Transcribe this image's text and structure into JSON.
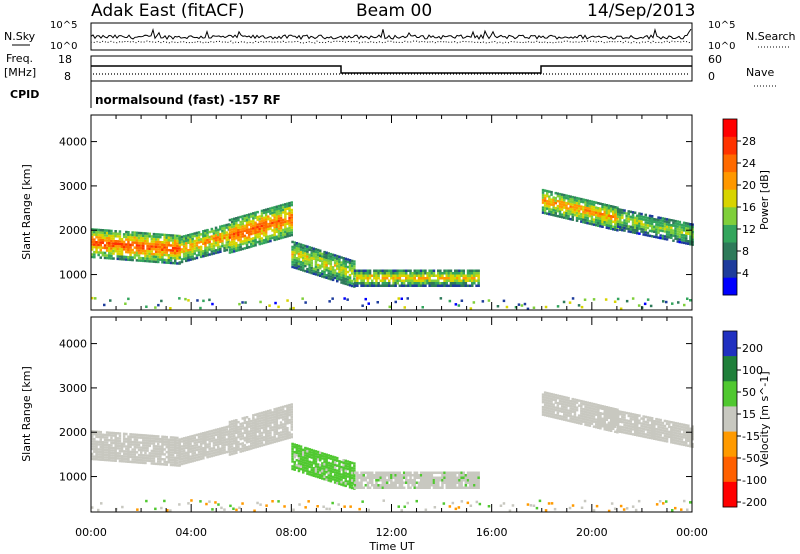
{
  "header": {
    "radar": "Adak East (fitACF)",
    "beam": "Beam 00",
    "date": "14/Sep/2013"
  },
  "params": {
    "nsky_label": "N.Sky",
    "nsky_ticks": [
      "10^5",
      "10^0"
    ],
    "nsearch_label": "N.Search",
    "nsearch_ticks": [
      "10^5",
      "10^0"
    ],
    "freq_label": "Freq.",
    "freq_unit": "[MHz]",
    "freq_ticks": [
      "18",
      "8"
    ],
    "nave_label": "Nave",
    "nave_ticks": [
      "60",
      "0"
    ],
    "cpid_label": "CPID",
    "cpid_text": "normalsound (fast) -157 RF"
  },
  "colors": {
    "power": [
      "#0000ff",
      "#1e3c9c",
      "#2e7a5a",
      "#33a55c",
      "#7fcf3a",
      "#d8d400",
      "#ff9800",
      "#ff6a00",
      "#ff3300",
      "#ff0000"
    ],
    "velocity": [
      "#2030c0",
      "#1f7f3a",
      "#50c830",
      "#c8c8c0",
      "#ff9a00",
      "#ff6000",
      "#ff0000"
    ]
  },
  "chart_data": [
    {
      "type": "heatmap",
      "title": "Power",
      "xlabel": "Time UT",
      "ylabel": "Slant Range [km]",
      "xlim": [
        "00:00",
        "24:00"
      ],
      "x_ticks": [
        "00:00",
        "04:00",
        "08:00",
        "12:00",
        "16:00",
        "20:00",
        "00:00"
      ],
      "ylim": [
        200,
        4600
      ],
      "y_ticks": [
        "1000",
        "2000",
        "3000",
        "4000"
      ],
      "colorbar_label": "Power [dB]",
      "colorbar_ticks": [
        "4",
        "8",
        "12",
        "16",
        "20",
        "24",
        "28"
      ],
      "colorbar_range": [
        0,
        32
      ],
      "echo_regions": [
        {
          "t_start": 0.0,
          "t_end": 3.5,
          "range_center_start": 1750,
          "range_center_end": 1600,
          "range_width": 650,
          "power_peak": 26
        },
        {
          "t_start": 3.5,
          "t_end": 5.5,
          "range_center_start": 1600,
          "range_center_end": 1900,
          "range_width": 600,
          "power_peak": 22
        },
        {
          "t_start": 5.5,
          "t_end": 8.0,
          "range_center_start": 1900,
          "range_center_end": 2300,
          "range_width": 750,
          "power_peak": 25
        },
        {
          "t_start": 8.0,
          "t_end": 10.5,
          "range_center_start": 1500,
          "range_center_end": 1050,
          "range_width": 600,
          "power_peak": 18
        },
        {
          "t_start": 10.5,
          "t_end": 15.5,
          "range_center_start": 950,
          "range_center_end": 950,
          "range_width": 350,
          "power_peak": 20
        },
        {
          "t_start": 18.0,
          "t_end": 21.0,
          "range_center_start": 2700,
          "range_center_end": 2300,
          "range_width": 550,
          "power_peak": 22
        },
        {
          "t_start": 21.0,
          "t_end": 24.0,
          "range_center_start": 2300,
          "range_center_end": 1950,
          "range_width": 500,
          "power_peak": 16
        }
      ]
    },
    {
      "type": "heatmap",
      "title": "Velocity",
      "xlabel": "Time UT",
      "ylabel": "Slant Range [km]",
      "xlim": [
        "00:00",
        "24:00"
      ],
      "x_ticks": [
        "00:00",
        "04:00",
        "08:00",
        "12:00",
        "16:00",
        "20:00",
        "00:00"
      ],
      "ylim": [
        200,
        4600
      ],
      "y_ticks": [
        "1000",
        "2000",
        "3000",
        "4000"
      ],
      "colorbar_label": "Velocity [m s^-1]",
      "colorbar_ticks": [
        "200",
        "100",
        "50",
        "15",
        "-15",
        "-50",
        "-100",
        "-200"
      ],
      "echo_regions": [
        {
          "t_start": 0.0,
          "t_end": 3.5,
          "range_center_start": 1750,
          "range_center_end": 1600,
          "range_width": 650,
          "velocity": 0
        },
        {
          "t_start": 3.5,
          "t_end": 5.5,
          "range_center_start": 1600,
          "range_center_end": 1900,
          "range_width": 600,
          "velocity": 0
        },
        {
          "t_start": 5.5,
          "t_end": 8.0,
          "range_center_start": 1900,
          "range_center_end": 2300,
          "range_width": 750,
          "velocity": 0
        },
        {
          "t_start": 8.0,
          "t_end": 10.5,
          "range_center_start": 1500,
          "range_center_end": 1050,
          "range_width": 600,
          "velocity": 40
        },
        {
          "t_start": 10.5,
          "t_end": 15.5,
          "range_center_start": 950,
          "range_center_end": 950,
          "range_width": 350,
          "velocity": 20
        },
        {
          "t_start": 18.0,
          "t_end": 21.0,
          "range_center_start": 2700,
          "range_center_end": 2300,
          "range_width": 550,
          "velocity": 0
        },
        {
          "t_start": 21.0,
          "t_end": 24.0,
          "range_center_start": 2300,
          "range_center_end": 1950,
          "range_width": 500,
          "velocity": 0
        }
      ]
    }
  ]
}
